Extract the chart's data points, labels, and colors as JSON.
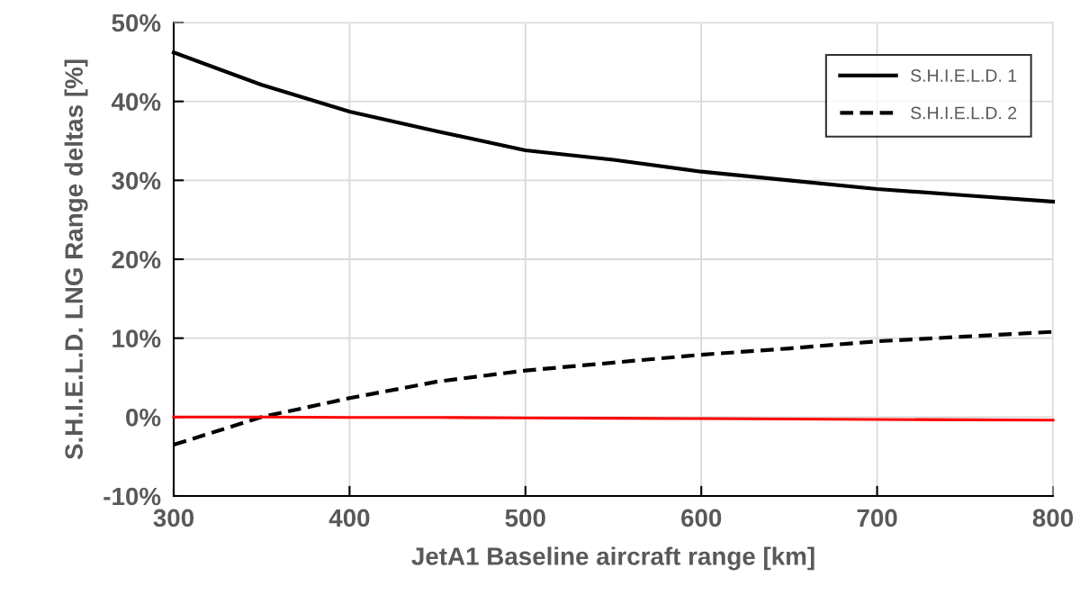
{
  "chart_data": {
    "type": "line",
    "xlabel": "JetA1 Baseline aircraft range [km]",
    "ylabel": "S.H.I.E.L.D. LNG Range deltas [%]",
    "x": [
      300,
      350,
      400,
      450,
      500,
      550,
      600,
      650,
      700,
      750,
      800
    ],
    "series": [
      {
        "name": "S.H.I.E.L.D. 1",
        "color": "#000000",
        "line_style": "solid",
        "values": [
          46.2,
          42.1,
          38.7,
          36.2,
          33.8,
          32.6,
          31.1,
          30.0,
          28.9,
          28.1,
          27.3
        ]
      },
      {
        "name": "S.H.I.E.L.D. 2",
        "color": "#000000",
        "line_style": "dashed",
        "values": [
          -3.5,
          0,
          2.4,
          4.5,
          5.9,
          6.9,
          7.9,
          8.7,
          9.6,
          10.2,
          10.8
        ]
      },
      {
        "color": "#ff0000",
        "line_style": "solid",
        "values": [
          0,
          0,
          -0.05,
          -0.05,
          -0.1,
          -0.15,
          -0.2,
          -0.25,
          -0.3,
          -0.35,
          -0.4
        ]
      }
    ],
    "xlim": [
      300,
      800
    ],
    "xticks": [
      300,
      400,
      500,
      600,
      700,
      800
    ],
    "ylim": [
      -10,
      50
    ],
    "yticks": [
      {
        "value": -10,
        "label": "-10%"
      },
      {
        "value": 0,
        "label": "0%"
      },
      {
        "value": 10,
        "label": "10%"
      },
      {
        "value": 20,
        "label": "20%"
      },
      {
        "value": 30,
        "label": "30%"
      },
      {
        "value": 40,
        "label": "40%"
      },
      {
        "value": 50,
        "label": "50%"
      }
    ],
    "grid": true,
    "legend": "top right",
    "marker": "none"
  }
}
